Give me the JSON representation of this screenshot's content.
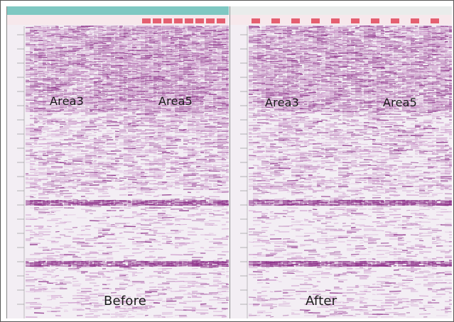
{
  "panels": [
    {
      "id": "before",
      "area_labels": [
        "Area3",
        "Area5"
      ],
      "caption": "Before"
    },
    {
      "id": "after",
      "area_labels": [
        "Area3",
        "Area5"
      ],
      "caption": "After"
    }
  ],
  "colors": {
    "trace": "#8a2a86",
    "trace_light": "#c98fc7",
    "background": "#f3eef4",
    "header_marker": "#e0465a",
    "before_titlebar": "#7fc8c2",
    "after_titlebar": "#e9eceb"
  }
}
